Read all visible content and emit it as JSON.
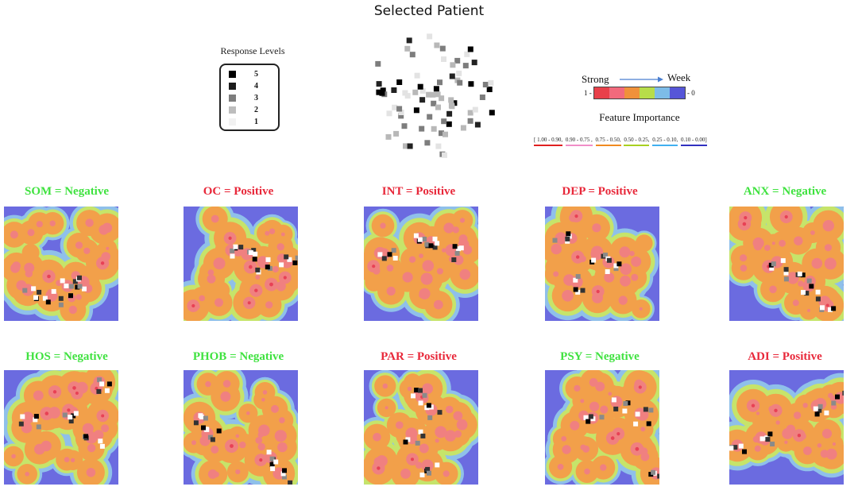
{
  "title": "Selected Patient",
  "legend": {
    "title": "Response Levels",
    "items": [
      {
        "label": "5",
        "color": "#000000"
      },
      {
        "label": "4",
        "color": "#1c1c1c"
      },
      {
        "label": "3",
        "color": "#7d7d7d"
      },
      {
        "label": "2",
        "color": "#bdbdbd"
      },
      {
        "label": "1",
        "color": "#f2f2f2"
      }
    ]
  },
  "feature_importance": {
    "strong_label": "Strong",
    "weak_label": "Week",
    "max_label": "1 -",
    "min_label": "- 0",
    "title": "Feature Importance",
    "scale_colors": [
      "#e8404a",
      "#f26a7c",
      "#f0913a",
      "#b7dd4a",
      "#7dbce8",
      "#5656d8"
    ],
    "ranges": [
      {
        "label": "[ 1.00 - 0.90,",
        "color": "#e02020"
      },
      {
        "label": "0.90 - 0.75 ,",
        "color": "#f08ec8"
      },
      {
        "label": "0.75 - 0.50,",
        "color": "#f08a20"
      },
      {
        "label": "0.50 - 0.25,",
        "color": "#a8d020"
      },
      {
        "label": "0.25 - 0.10,",
        "color": "#40b0f0"
      },
      {
        "label": "0.10 - 0.00]",
        "color": "#3030c0"
      }
    ]
  },
  "maps": [
    {
      "code": "SOM",
      "label": "SOM = Negative",
      "result": "Negative",
      "color": "#3fe23f"
    },
    {
      "code": "OC",
      "label": "OC = Positive",
      "result": "Positive",
      "color": "#e8283a"
    },
    {
      "code": "INT",
      "label": "INT = Positive",
      "result": "Positive",
      "color": "#e8283a"
    },
    {
      "code": "DEP",
      "label": "DEP = Positive",
      "result": "Positive",
      "color": "#e8283a"
    },
    {
      "code": "ANX",
      "label": "ANX = Negative",
      "result": "Negative",
      "color": "#3fe23f"
    },
    {
      "code": "HOS",
      "label": "HOS = Negative",
      "result": "Negative",
      "color": "#3fe23f"
    },
    {
      "code": "PHOB",
      "label": "PHOB = Negative",
      "result": "Negative",
      "color": "#3fe23f"
    },
    {
      "code": "PAR",
      "label": "PAR = Positive",
      "result": "Positive",
      "color": "#e8283a"
    },
    {
      "code": "PSY",
      "label": "PSY = Negative",
      "result": "Negative",
      "color": "#3fe23f"
    },
    {
      "code": "ADI",
      "label": "ADI = Positive",
      "result": "Positive",
      "color": "#e8283a"
    }
  ]
}
